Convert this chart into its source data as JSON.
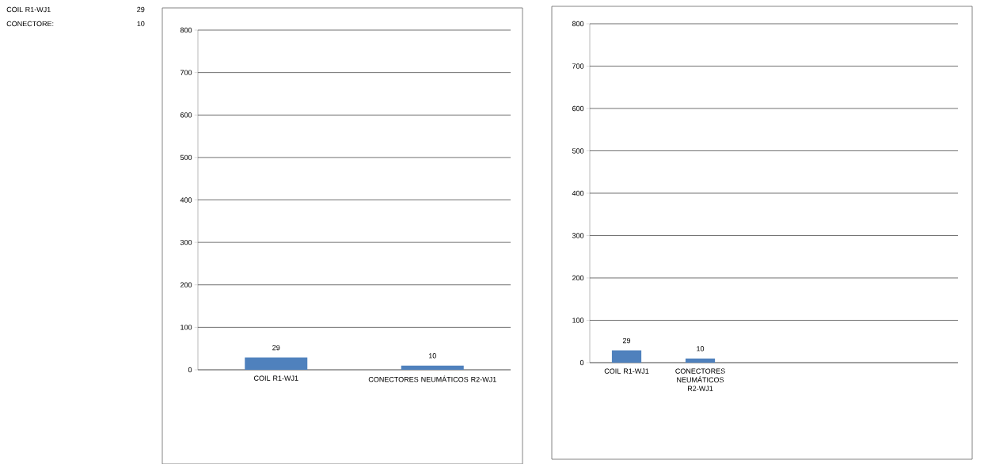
{
  "chart_data": [
    {
      "type": "other",
      "annotations": [
        "COIL R1-WJ1",
        "29",
        "CONECTORE:",
        "10"
      ]
    },
    {
      "type": "bar",
      "categories": [
        "COIL R1-WJ1",
        "CONECTORES NEUMÁTICOS R2-WJ1"
      ],
      "values": [
        29,
        10
      ],
      "color": "#4f81bd",
      "ylim": [
        0,
        800
      ],
      "yticks": [
        0,
        100,
        200,
        300,
        400,
        500,
        600,
        700,
        800
      ],
      "grid": "y",
      "data_labels": true
    },
    {
      "type": "bar",
      "categories": [
        "COIL R1-WJ1",
        "CONECTORES NEUMÁTICOS R2-WJ1",
        null,
        null,
        null
      ],
      "values": [
        29,
        10,
        null,
        null,
        null
      ],
      "color": "#4f81bd",
      "ylim": [
        0,
        800
      ],
      "yticks": [
        0,
        100,
        200,
        300,
        400,
        500,
        600,
        700,
        800
      ],
      "grid": "y",
      "data_labels": true
    }
  ]
}
